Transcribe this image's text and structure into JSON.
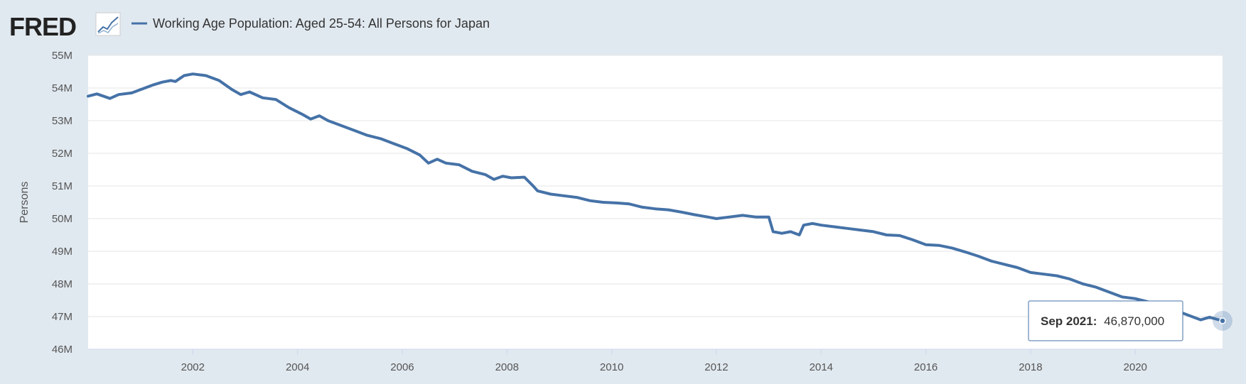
{
  "header": {
    "logo_text": "FRED",
    "logo_icon": "fred-sparkline-logo",
    "legend_label": "Working Age Population: Aged 25-54: All Persons for Japan"
  },
  "tooltip": {
    "label": "Sep 2021:",
    "value": "46,870,000"
  },
  "colors": {
    "series": "#4572a7",
    "background": "#e1e9f0",
    "plot_background": "#ffffff",
    "grid": "#e6e6e6"
  },
  "chart_data": {
    "type": "line",
    "title": "",
    "xlabel": "",
    "ylabel": "Persons",
    "x_range": [
      "2000-01",
      "2021-09"
    ],
    "ylim": [
      46000000,
      55000000
    ],
    "grid": true,
    "legend_position": "top",
    "y_ticks": [
      {
        "value": 55000000,
        "label": "55M"
      },
      {
        "value": 54000000,
        "label": "54M"
      },
      {
        "value": 53000000,
        "label": "53M"
      },
      {
        "value": 52000000,
        "label": "52M"
      },
      {
        "value": 51000000,
        "label": "51M"
      },
      {
        "value": 50000000,
        "label": "50M"
      },
      {
        "value": 49000000,
        "label": "49M"
      },
      {
        "value": 48000000,
        "label": "48M"
      },
      {
        "value": 47000000,
        "label": "47M"
      },
      {
        "value": 46000000,
        "label": "46M"
      }
    ],
    "x_ticks": [
      "2002",
      "2004",
      "2006",
      "2008",
      "2010",
      "2012",
      "2014",
      "2016",
      "2018",
      "2020"
    ],
    "series": [
      {
        "name": "Working Age Population: Aged 25-54: All Persons for Japan",
        "points": [
          [
            "2000-01",
            53750000
          ],
          [
            "2000-03",
            53820000
          ],
          [
            "2000-06",
            53680000
          ],
          [
            "2000-08",
            53800000
          ],
          [
            "2000-11",
            53850000
          ],
          [
            "2001-01",
            53950000
          ],
          [
            "2001-04",
            54100000
          ],
          [
            "2001-06",
            54180000
          ],
          [
            "2001-08",
            54230000
          ],
          [
            "2001-09",
            54200000
          ],
          [
            "2001-11",
            54380000
          ],
          [
            "2002-01",
            54430000
          ],
          [
            "2002-04",
            54380000
          ],
          [
            "2002-07",
            54230000
          ],
          [
            "2002-10",
            53950000
          ],
          [
            "2002-12",
            53800000
          ],
          [
            "2003-02",
            53880000
          ],
          [
            "2003-05",
            53700000
          ],
          [
            "2003-08",
            53650000
          ],
          [
            "2003-11",
            53400000
          ],
          [
            "2004-02",
            53200000
          ],
          [
            "2004-04",
            53050000
          ],
          [
            "2004-06",
            53150000
          ],
          [
            "2004-08",
            53000000
          ],
          [
            "2004-11",
            52850000
          ],
          [
            "2005-02",
            52700000
          ],
          [
            "2005-05",
            52550000
          ],
          [
            "2005-08",
            52450000
          ],
          [
            "2005-11",
            52300000
          ],
          [
            "2006-02",
            52150000
          ],
          [
            "2006-05",
            51950000
          ],
          [
            "2006-07",
            51700000
          ],
          [
            "2006-09",
            51820000
          ],
          [
            "2006-11",
            51700000
          ],
          [
            "2007-02",
            51650000
          ],
          [
            "2007-05",
            51450000
          ],
          [
            "2007-08",
            51350000
          ],
          [
            "2007-10",
            51200000
          ],
          [
            "2007-12",
            51300000
          ],
          [
            "2008-02",
            51250000
          ],
          [
            "2008-05",
            51270000
          ],
          [
            "2008-07",
            51000000
          ],
          [
            "2008-08",
            50850000
          ],
          [
            "2008-11",
            50750000
          ],
          [
            "2009-02",
            50700000
          ],
          [
            "2009-05",
            50650000
          ],
          [
            "2009-08",
            50550000
          ],
          [
            "2009-11",
            50500000
          ],
          [
            "2010-02",
            50480000
          ],
          [
            "2010-05",
            50450000
          ],
          [
            "2010-08",
            50350000
          ],
          [
            "2010-11",
            50300000
          ],
          [
            "2011-02",
            50270000
          ],
          [
            "2011-05",
            50200000
          ],
          [
            "2011-08",
            50120000
          ],
          [
            "2011-11",
            50050000
          ],
          [
            "2012-01",
            50000000
          ],
          [
            "2012-04",
            50050000
          ],
          [
            "2012-07",
            50100000
          ],
          [
            "2012-10",
            50050000
          ],
          [
            "2013-01",
            50050000
          ],
          [
            "2013-02",
            49600000
          ],
          [
            "2013-04",
            49550000
          ],
          [
            "2013-06",
            49600000
          ],
          [
            "2013-08",
            49500000
          ],
          [
            "2013-09",
            49800000
          ],
          [
            "2013-11",
            49850000
          ],
          [
            "2014-01",
            49800000
          ],
          [
            "2014-04",
            49750000
          ],
          [
            "2014-07",
            49700000
          ],
          [
            "2014-10",
            49650000
          ],
          [
            "2015-01",
            49600000
          ],
          [
            "2015-04",
            49500000
          ],
          [
            "2015-07",
            49480000
          ],
          [
            "2015-10",
            49350000
          ],
          [
            "2016-01",
            49200000
          ],
          [
            "2016-04",
            49180000
          ],
          [
            "2016-07",
            49100000
          ],
          [
            "2016-10",
            48980000
          ],
          [
            "2017-01",
            48850000
          ],
          [
            "2017-04",
            48700000
          ],
          [
            "2017-07",
            48600000
          ],
          [
            "2017-10",
            48500000
          ],
          [
            "2018-01",
            48350000
          ],
          [
            "2018-04",
            48300000
          ],
          [
            "2018-07",
            48250000
          ],
          [
            "2018-10",
            48150000
          ],
          [
            "2019-01",
            48000000
          ],
          [
            "2019-04",
            47900000
          ],
          [
            "2019-07",
            47750000
          ],
          [
            "2019-10",
            47600000
          ],
          [
            "2020-01",
            47550000
          ],
          [
            "2020-04",
            47450000
          ],
          [
            "2020-07",
            47300000
          ],
          [
            "2020-10",
            47200000
          ],
          [
            "2021-01",
            47050000
          ],
          [
            "2021-04",
            46900000
          ],
          [
            "2021-06",
            46980000
          ],
          [
            "2021-09",
            46870000
          ]
        ]
      }
    ]
  }
}
